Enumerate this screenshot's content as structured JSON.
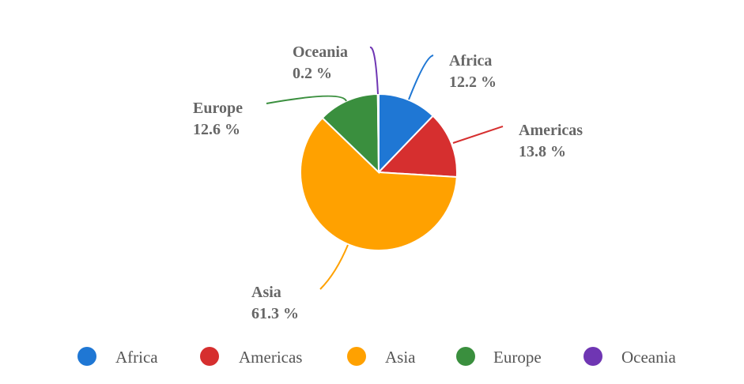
{
  "chart_data": {
    "type": "pie",
    "series": [
      {
        "name": "Africa",
        "value": 12.2,
        "label": "12.2 %",
        "color": "#1f77d4"
      },
      {
        "name": "Americas",
        "value": 13.8,
        "label": "13.8 %",
        "color": "#d62f2f"
      },
      {
        "name": "Asia",
        "value": 61.3,
        "label": "61.3 %",
        "color": "#ffa100"
      },
      {
        "name": "Europe",
        "value": 12.6,
        "label": "12.6 %",
        "color": "#3a8f3e"
      },
      {
        "name": "Oceania",
        "value": 0.2,
        "label": "0.2 %",
        "color": "#6f36b3"
      }
    ],
    "legend_position": "bottom"
  }
}
